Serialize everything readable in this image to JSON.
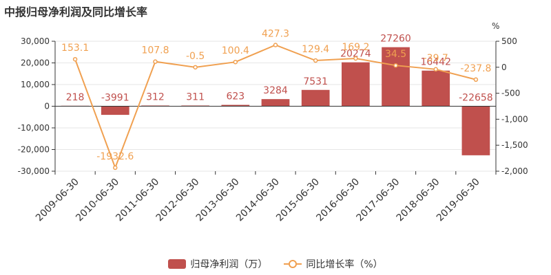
{
  "title": "中报归母净利润及同比增长率",
  "colors": {
    "bar": "#c0504d",
    "line": "#f0a050",
    "axis": "#333333",
    "grid": "#e6e6e6"
  },
  "chart_data": {
    "type": "bar",
    "categories": [
      "2009-06-30",
      "2010-06-30",
      "2011-06-30",
      "2012-06-30",
      "2013-06-30",
      "2014-06-30",
      "2015-06-30",
      "2016-06-30",
      "2017-06-30",
      "2018-06-30",
      "2019-06-30"
    ],
    "series": [
      {
        "name": "归母净利润（万）",
        "type": "bar",
        "axis": "left",
        "values": [
          218,
          -3991,
          312,
          311,
          623,
          3284,
          7531,
          20274,
          27260,
          16442,
          -22658
        ],
        "labels": [
          "218",
          "-3991",
          "312",
          "311",
          "623",
          "3284",
          "7531",
          "20274",
          "27260",
          "16442",
          "-22658"
        ]
      },
      {
        "name": "同比增长率（%）",
        "type": "line",
        "axis": "right",
        "values": [
          153.1,
          -1932.6,
          107.8,
          -0.5,
          100.4,
          427.3,
          129.4,
          169.2,
          34.5,
          -39.7,
          -237.8
        ],
        "labels": [
          "153.1",
          "-1932.6",
          "107.8",
          "-0.5",
          "100.4",
          "427.3",
          "129.4",
          "169.2",
          "34.5",
          "-39.7",
          "-237.8"
        ]
      }
    ],
    "y_left": {
      "min": -30000,
      "max": 30000,
      "ticks": [
        "30,000",
        "20,000",
        "10,000",
        "0",
        "-10,000",
        "-20,000",
        "-30,000"
      ],
      "tick_values": [
        30000,
        20000,
        10000,
        0,
        -10000,
        -20000,
        -30000
      ]
    },
    "y_right": {
      "label": "%",
      "min": -2000,
      "max": 500,
      "ticks": [
        "500",
        "0",
        "-500",
        "-1,000",
        "-1,500",
        "-2,000"
      ],
      "tick_values": [
        500,
        0,
        -500,
        -1000,
        -1500,
        -2000
      ]
    },
    "legend": {
      "position": "bottom"
    }
  }
}
